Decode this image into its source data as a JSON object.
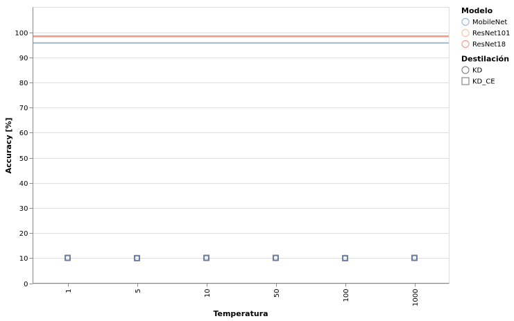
{
  "chart_data": {
    "type": "scatter",
    "xlabel": "Temperatura",
    "ylabel": "Accuracy [%]",
    "categories": [
      "1",
      "5",
      "10",
      "50",
      "100",
      "1000"
    ],
    "ylim": [
      0,
      110
    ],
    "yticks": [
      0,
      10,
      20,
      30,
      40,
      50,
      60,
      70,
      80,
      90,
      100
    ],
    "grid": true,
    "legend_position": "right",
    "reference_lines": [
      {
        "model": "MobileNet",
        "value": 95.8,
        "color": "#9fb7d8"
      },
      {
        "model": "ResNet101",
        "value": 98.3,
        "color": "#f4b98f"
      },
      {
        "model": "ResNet18",
        "value": 98.5,
        "color": "#ef9a87"
      }
    ],
    "series": [
      {
        "model": "MobileNet",
        "distillation": "KD",
        "color": "#7c90b8",
        "values": [
          10.1,
          10.0,
          10.1,
          10.1,
          10.0,
          10.1
        ]
      },
      {
        "model": "MobileNet",
        "distillation": "KD_CE",
        "color": "#6e7ea3",
        "values": [
          10.1,
          10.0,
          10.1,
          10.1,
          10.0,
          10.1
        ]
      }
    ],
    "legends": [
      {
        "title": "Modelo",
        "shape": "circle",
        "items": [
          {
            "label": "MobileNet",
            "color": "#9fb7d8"
          },
          {
            "label": "ResNet101",
            "color": "#f4c9a5"
          },
          {
            "label": "ResNet18",
            "color": "#ef9f94"
          }
        ]
      },
      {
        "title": "Destilación",
        "shape": "mixed",
        "items": [
          {
            "label": "KD",
            "shape": "circle",
            "color": "#888888"
          },
          {
            "label": "KD_CE",
            "shape": "square",
            "color": "#888888"
          }
        ]
      }
    ]
  }
}
